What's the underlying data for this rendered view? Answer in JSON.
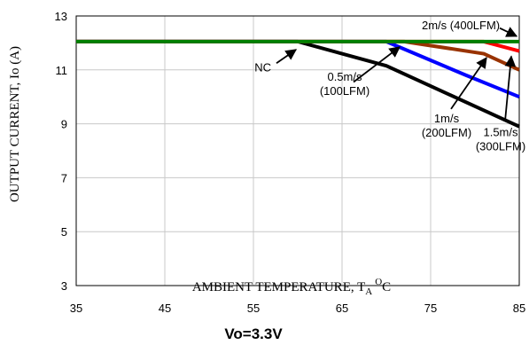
{
  "chart_data": {
    "type": "line",
    "xlabel": "AMBIENT TEMPERATURE, TA OC",
    "xlabel_parts": {
      "main": "AMBIENT TEMPERATURE, T",
      "sub": "A",
      "sup": "O",
      "unit": "C"
    },
    "ylabel": "OUTPUT CURRENT, Io  (A)",
    "caption": "Vo=3.3V",
    "xlim": [
      35,
      85
    ],
    "ylim": [
      3,
      13
    ],
    "x_ticks": [
      35,
      45,
      55,
      65,
      75,
      85
    ],
    "y_ticks": [
      3,
      5,
      7,
      9,
      11,
      13
    ],
    "grid": true,
    "series": [
      {
        "name": "NC",
        "color": "#000000",
        "x": [
          35,
          60,
          70,
          85
        ],
        "y": [
          12.05,
          12.05,
          11.15,
          8.9
        ]
      },
      {
        "name": "0.5m/s (100LFM)",
        "color": "#0000ff",
        "x": [
          35,
          70,
          79,
          85
        ],
        "y": [
          12.05,
          12.05,
          10.8,
          10.0
        ]
      },
      {
        "name": "1m/s (200LFM)",
        "color": "#993300",
        "x": [
          35,
          72,
          81,
          85
        ],
        "y": [
          12.05,
          12.05,
          11.6,
          11.0
        ]
      },
      {
        "name": "1.5m/s (300LFM)",
        "color": "#ff0000",
        "x": [
          35,
          81,
          85
        ],
        "y": [
          12.05,
          12.05,
          11.7
        ]
      },
      {
        "name": "2m/s (400LFM)",
        "color": "#008000",
        "x": [
          35,
          85
        ],
        "y": [
          12.05,
          12.05
        ]
      }
    ],
    "annotations": [
      {
        "lines": [
          "NC"
        ],
        "text_at": [
          57,
          10.95
        ],
        "anchor": "end",
        "arrow_from": [
          57.6,
          11.25
        ],
        "arrow_to": [
          59.8,
          11.75
        ]
      },
      {
        "lines": [
          "0.5m/s",
          "(100LFM)"
        ],
        "text_at": [
          65.3,
          10.6
        ],
        "anchor": "middle",
        "arrow_from": [
          66.3,
          10.55
        ],
        "arrow_to": [
          71.5,
          11.85
        ]
      },
      {
        "lines": [
          "1m/s",
          "(200LFM)"
        ],
        "text_at": [
          76.8,
          9.05
        ],
        "anchor": "middle",
        "arrow_from": [
          77.3,
          9.55
        ],
        "arrow_to": [
          81.3,
          11.45
        ]
      },
      {
        "lines": [
          "1.5m/s",
          "(300LFM)"
        ],
        "text_at": [
          82.9,
          8.55
        ],
        "anchor": "middle",
        "arrow_from": [
          83.4,
          9.1
        ],
        "arrow_to": [
          84.1,
          11.5
        ]
      },
      {
        "lines": [
          "2m/s (400LFM)"
        ],
        "text_at": [
          74,
          12.5
        ],
        "anchor": "start",
        "arrow_from": [
          82.8,
          12.55
        ],
        "arrow_to": [
          84.7,
          12.25
        ]
      }
    ]
  }
}
